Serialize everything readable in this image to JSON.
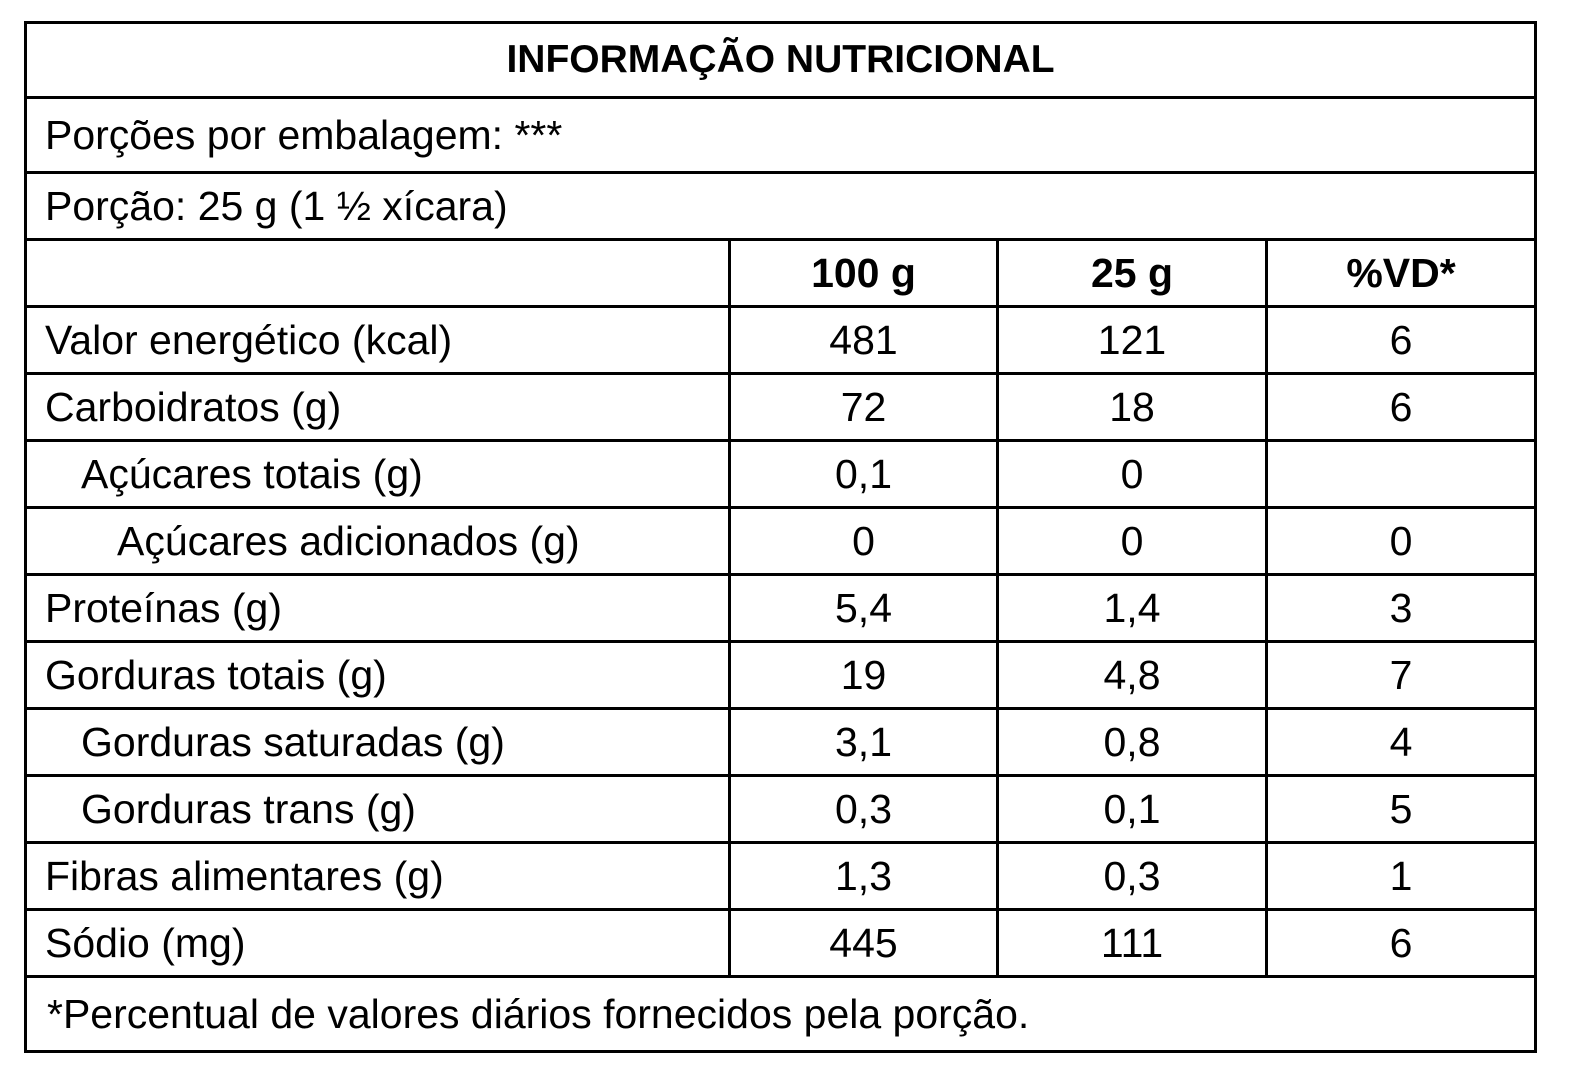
{
  "title": "INFORMAÇÃO NUTRICIONAL",
  "servings_per_package": "Porções por embalagem: ***",
  "serving": "Porção: 25 g (1 ½ xícara)",
  "table": {
    "header": [
      "100 g",
      "25 g",
      "%VD*"
    ],
    "rows": [
      [
        "Valor energético (kcal)",
        "481",
        "121",
        "6"
      ],
      [
        "Carboidratos (g)",
        "72",
        "18",
        "6"
      ],
      [
        "Açúcares totais (g)",
        "0,1",
        "0"
      ],
      [
        "Açúcares adicionados (g)",
        "0",
        "0",
        "0"
      ],
      [
        "Proteínas (g)",
        "5,4",
        "1,4",
        "3"
      ],
      [
        "Gorduras totais (g)",
        "19",
        "4,8",
        "7"
      ],
      [
        "Gorduras saturadas (g)",
        "3,1",
        "0,8",
        "4"
      ],
      [
        "Gorduras trans (g)",
        "0,3",
        "0,1",
        "5"
      ],
      [
        "Fibras alimentares (g)",
        "1,3",
        "0,3",
        "1"
      ],
      [
        "Sódio (mg)",
        "445",
        "111",
        "6"
      ]
    ]
  },
  "footnote": "*Percentual de valores diários fornecidos pela porção."
}
